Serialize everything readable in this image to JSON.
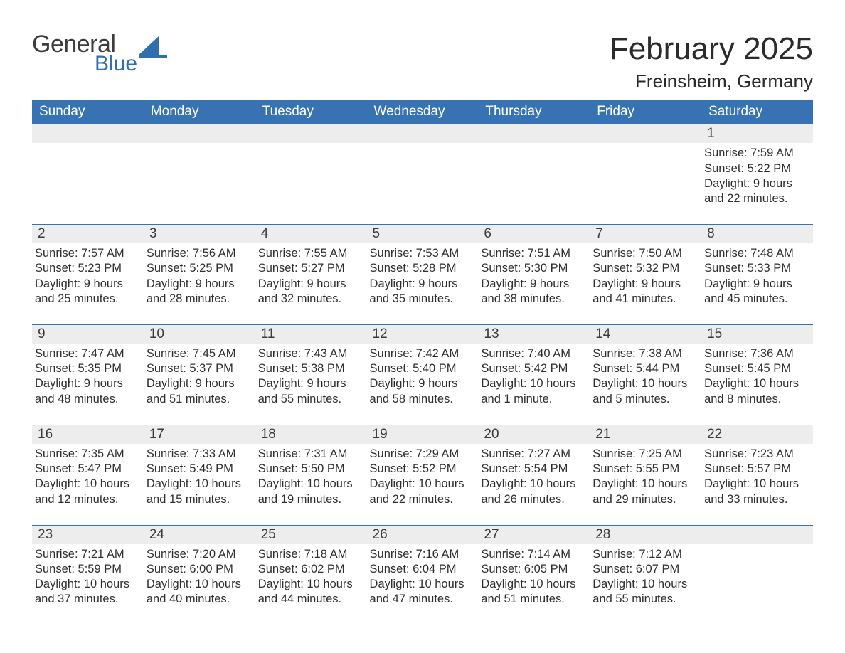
{
  "brand": {
    "line1": "General",
    "line2": "Blue"
  },
  "colors": {
    "header_bg": "#3772b3",
    "header_text": "#ffffff",
    "daynum_bg": "#ededed",
    "text": "#303030",
    "logo_gray": "#3c3c3c",
    "logo_blue": "#2f6fb0",
    "page_bg": "#ffffff",
    "row_divider": "#3772b3"
  },
  "title": "February 2025",
  "location": "Freinsheim, Germany",
  "day_headers": [
    "Sunday",
    "Monday",
    "Tuesday",
    "Wednesday",
    "Thursday",
    "Friday",
    "Saturday"
  ],
  "weeks": [
    [
      null,
      null,
      null,
      null,
      null,
      null,
      {
        "n": "1",
        "sunrise": "Sunrise: 7:59 AM",
        "sunset": "Sunset: 5:22 PM",
        "daylight": "Daylight: 9 hours and 22 minutes."
      }
    ],
    [
      {
        "n": "2",
        "sunrise": "Sunrise: 7:57 AM",
        "sunset": "Sunset: 5:23 PM",
        "daylight": "Daylight: 9 hours and 25 minutes."
      },
      {
        "n": "3",
        "sunrise": "Sunrise: 7:56 AM",
        "sunset": "Sunset: 5:25 PM",
        "daylight": "Daylight: 9 hours and 28 minutes."
      },
      {
        "n": "4",
        "sunrise": "Sunrise: 7:55 AM",
        "sunset": "Sunset: 5:27 PM",
        "daylight": "Daylight: 9 hours and 32 minutes."
      },
      {
        "n": "5",
        "sunrise": "Sunrise: 7:53 AM",
        "sunset": "Sunset: 5:28 PM",
        "daylight": "Daylight: 9 hours and 35 minutes."
      },
      {
        "n": "6",
        "sunrise": "Sunrise: 7:51 AM",
        "sunset": "Sunset: 5:30 PM",
        "daylight": "Daylight: 9 hours and 38 minutes."
      },
      {
        "n": "7",
        "sunrise": "Sunrise: 7:50 AM",
        "sunset": "Sunset: 5:32 PM",
        "daylight": "Daylight: 9 hours and 41 minutes."
      },
      {
        "n": "8",
        "sunrise": "Sunrise: 7:48 AM",
        "sunset": "Sunset: 5:33 PM",
        "daylight": "Daylight: 9 hours and 45 minutes."
      }
    ],
    [
      {
        "n": "9",
        "sunrise": "Sunrise: 7:47 AM",
        "sunset": "Sunset: 5:35 PM",
        "daylight": "Daylight: 9 hours and 48 minutes."
      },
      {
        "n": "10",
        "sunrise": "Sunrise: 7:45 AM",
        "sunset": "Sunset: 5:37 PM",
        "daylight": "Daylight: 9 hours and 51 minutes."
      },
      {
        "n": "11",
        "sunrise": "Sunrise: 7:43 AM",
        "sunset": "Sunset: 5:38 PM",
        "daylight": "Daylight: 9 hours and 55 minutes."
      },
      {
        "n": "12",
        "sunrise": "Sunrise: 7:42 AM",
        "sunset": "Sunset: 5:40 PM",
        "daylight": "Daylight: 9 hours and 58 minutes."
      },
      {
        "n": "13",
        "sunrise": "Sunrise: 7:40 AM",
        "sunset": "Sunset: 5:42 PM",
        "daylight": "Daylight: 10 hours and 1 minute."
      },
      {
        "n": "14",
        "sunrise": "Sunrise: 7:38 AM",
        "sunset": "Sunset: 5:44 PM",
        "daylight": "Daylight: 10 hours and 5 minutes."
      },
      {
        "n": "15",
        "sunrise": "Sunrise: 7:36 AM",
        "sunset": "Sunset: 5:45 PM",
        "daylight": "Daylight: 10 hours and 8 minutes."
      }
    ],
    [
      {
        "n": "16",
        "sunrise": "Sunrise: 7:35 AM",
        "sunset": "Sunset: 5:47 PM",
        "daylight": "Daylight: 10 hours and 12 minutes."
      },
      {
        "n": "17",
        "sunrise": "Sunrise: 7:33 AM",
        "sunset": "Sunset: 5:49 PM",
        "daylight": "Daylight: 10 hours and 15 minutes."
      },
      {
        "n": "18",
        "sunrise": "Sunrise: 7:31 AM",
        "sunset": "Sunset: 5:50 PM",
        "daylight": "Daylight: 10 hours and 19 minutes."
      },
      {
        "n": "19",
        "sunrise": "Sunrise: 7:29 AM",
        "sunset": "Sunset: 5:52 PM",
        "daylight": "Daylight: 10 hours and 22 minutes."
      },
      {
        "n": "20",
        "sunrise": "Sunrise: 7:27 AM",
        "sunset": "Sunset: 5:54 PM",
        "daylight": "Daylight: 10 hours and 26 minutes."
      },
      {
        "n": "21",
        "sunrise": "Sunrise: 7:25 AM",
        "sunset": "Sunset: 5:55 PM",
        "daylight": "Daylight: 10 hours and 29 minutes."
      },
      {
        "n": "22",
        "sunrise": "Sunrise: 7:23 AM",
        "sunset": "Sunset: 5:57 PM",
        "daylight": "Daylight: 10 hours and 33 minutes."
      }
    ],
    [
      {
        "n": "23",
        "sunrise": "Sunrise: 7:21 AM",
        "sunset": "Sunset: 5:59 PM",
        "daylight": "Daylight: 10 hours and 37 minutes."
      },
      {
        "n": "24",
        "sunrise": "Sunrise: 7:20 AM",
        "sunset": "Sunset: 6:00 PM",
        "daylight": "Daylight: 10 hours and 40 minutes."
      },
      {
        "n": "25",
        "sunrise": "Sunrise: 7:18 AM",
        "sunset": "Sunset: 6:02 PM",
        "daylight": "Daylight: 10 hours and 44 minutes."
      },
      {
        "n": "26",
        "sunrise": "Sunrise: 7:16 AM",
        "sunset": "Sunset: 6:04 PM",
        "daylight": "Daylight: 10 hours and 47 minutes."
      },
      {
        "n": "27",
        "sunrise": "Sunrise: 7:14 AM",
        "sunset": "Sunset: 6:05 PM",
        "daylight": "Daylight: 10 hours and 51 minutes."
      },
      {
        "n": "28",
        "sunrise": "Sunrise: 7:12 AM",
        "sunset": "Sunset: 6:07 PM",
        "daylight": "Daylight: 10 hours and 55 minutes."
      },
      null
    ]
  ]
}
